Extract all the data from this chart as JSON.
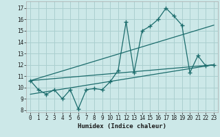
{
  "xlabel": "Humidex (Indice chaleur)",
  "background_color": "#cce8e8",
  "grid_color": "#aacfcf",
  "line_color": "#1a6b6b",
  "xlim": [
    -0.5,
    23.5
  ],
  "ylim": [
    7.8,
    17.6
  ],
  "xticks": [
    0,
    1,
    2,
    3,
    4,
    5,
    6,
    7,
    8,
    9,
    10,
    11,
    12,
    13,
    14,
    15,
    16,
    17,
    18,
    19,
    20,
    21,
    22,
    23
  ],
  "yticks": [
    8,
    9,
    10,
    11,
    12,
    13,
    14,
    15,
    16,
    17
  ],
  "line1_x": [
    0,
    1,
    2,
    3,
    4,
    5,
    6,
    7,
    8,
    9,
    10,
    11,
    12,
    13,
    14,
    15,
    16,
    17,
    18,
    19,
    20,
    21,
    22,
    23
  ],
  "line1_y": [
    10.6,
    9.8,
    9.4,
    9.8,
    9.0,
    9.8,
    8.1,
    9.8,
    9.9,
    9.8,
    10.5,
    11.5,
    15.8,
    11.3,
    15.0,
    15.4,
    16.0,
    17.0,
    16.3,
    15.5,
    11.3,
    12.8,
    11.9,
    12.0
  ],
  "line2_x": [
    0,
    23
  ],
  "line2_y": [
    10.6,
    12.0
  ],
  "line3_x": [
    0,
    23
  ],
  "line3_y": [
    10.6,
    15.5
  ],
  "line4_x": [
    0,
    23
  ],
  "line4_y": [
    9.4,
    12.0
  ],
  "tick_fontsize": 5.5,
  "xlabel_fontsize": 6.5
}
